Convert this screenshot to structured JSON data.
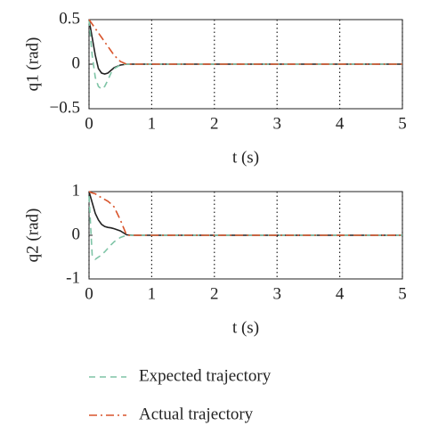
{
  "chart_data": [
    {
      "type": "line",
      "ylabel": "q1 (rad)",
      "xlabel": "t (s)",
      "x": [
        0,
        0.05,
        0.1,
        0.15,
        0.2,
        0.25,
        0.3,
        0.35,
        0.4,
        0.5,
        0.6,
        0.7,
        1,
        2,
        3,
        4,
        5
      ],
      "xlim": [
        0,
        5
      ],
      "xticks": [
        0,
        1,
        2,
        3,
        4,
        5
      ],
      "ylim": [
        -0.5,
        0.5
      ],
      "yticks": [
        {
          "value": 0.5,
          "label": "0.5"
        },
        0,
        {
          "value": -0.5,
          "label": "−0.5"
        }
      ],
      "grid": "x",
      "series": [
        {
          "color": "#222222",
          "style": "solid",
          "values": [
            0.5,
            0.3,
            0.1,
            -0.05,
            -0.1,
            -0.11,
            -0.1,
            -0.07,
            -0.04,
            -0.01,
            0,
            0,
            0,
            0,
            0,
            0,
            0
          ]
        },
        {
          "name": "Expected trajectory",
          "color": "#7ec4a6",
          "style": "dashed",
          "values": [
            0.5,
            0.1,
            -0.15,
            -0.25,
            -0.28,
            -0.25,
            -0.18,
            -0.1,
            -0.05,
            -0.01,
            0,
            0,
            0,
            0,
            0,
            0,
            0
          ]
        },
        {
          "name": "Actual trajectory",
          "color": "#d9542b",
          "style": "dashdot",
          "values": [
            0.5,
            0.45,
            0.4,
            0.35,
            0.3,
            0.25,
            0.2,
            0.15,
            0.1,
            0.03,
            0,
            0,
            0,
            0,
            0,
            0,
            0
          ]
        }
      ]
    },
    {
      "type": "line",
      "ylabel": "q2 (rad)",
      "xlabel": "t (s)",
      "x": [
        0,
        0.05,
        0.1,
        0.15,
        0.2,
        0.25,
        0.3,
        0.35,
        0.4,
        0.5,
        0.6,
        0.7,
        1,
        2,
        3,
        4,
        5
      ],
      "xlim": [
        0,
        5
      ],
      "xticks": [
        0,
        1,
        2,
        3,
        4,
        5
      ],
      "ylim": [
        -1,
        1
      ],
      "yticks": [
        1,
        0,
        -1
      ],
      "grid": "x",
      "series": [
        {
          "color": "#222222",
          "style": "solid",
          "values": [
            1,
            0.75,
            0.5,
            0.35,
            0.25,
            0.2,
            0.18,
            0.17,
            0.15,
            0.1,
            0.01,
            0,
            0,
            0,
            0,
            0,
            0
          ]
        },
        {
          "color": "#7ec4a6",
          "style": "dashed",
          "values": [
            0.9,
            -0.45,
            -0.55,
            -0.5,
            -0.45,
            -0.38,
            -0.3,
            -0.22,
            -0.15,
            -0.05,
            0,
            0,
            0,
            0,
            0,
            0,
            0
          ]
        },
        {
          "color": "#d9542b",
          "style": "dashdot",
          "values": [
            1,
            0.97,
            0.95,
            0.9,
            0.86,
            0.82,
            0.78,
            0.72,
            0.65,
            0.35,
            0,
            0,
            0,
            0,
            0,
            0,
            0
          ]
        }
      ]
    }
  ]
}
